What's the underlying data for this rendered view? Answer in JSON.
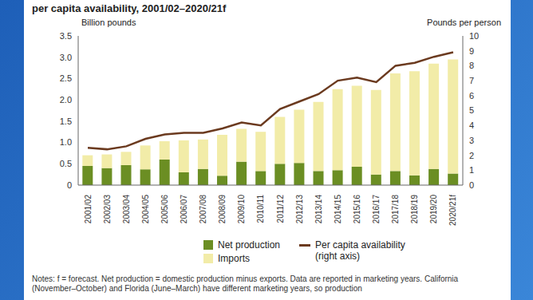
{
  "chart_data": {
    "type": "bar",
    "title": "per capita availability, 2001/02–2020/21f",
    "y_label": "Billion pounds",
    "y2_label": "Pounds per person",
    "stacked": true,
    "categories": [
      "2001/02",
      "2002/03",
      "2003/04",
      "2004/05",
      "2005/06",
      "2006/07",
      "2007/08",
      "2008/09",
      "2009/10",
      "2010/11",
      "2011/12",
      "2012/13",
      "2013/14",
      "2014/15",
      "2015/16",
      "2016/17",
      "2017/18",
      "2018/19",
      "2019/20",
      "2020/21f"
    ],
    "series": [
      {
        "name": "Net production",
        "type": "bar",
        "color": "#6b8e23",
        "values": [
          0.45,
          0.4,
          0.47,
          0.37,
          0.6,
          0.3,
          0.38,
          0.22,
          0.55,
          0.33,
          0.5,
          0.52,
          0.33,
          0.35,
          0.43,
          0.25,
          0.33,
          0.23,
          0.38,
          0.27
        ]
      },
      {
        "name": "Imports",
        "type": "bar",
        "color": "#f2eca8",
        "values": [
          0.25,
          0.32,
          0.31,
          0.56,
          0.43,
          0.75,
          0.69,
          0.96,
          0.77,
          0.92,
          1.1,
          1.25,
          1.62,
          1.9,
          1.9,
          1.98,
          2.29,
          2.44,
          2.47,
          2.68
        ]
      },
      {
        "name": "Per capita availability (right axis)",
        "type": "line",
        "axis": "y2",
        "color": "#6b3a1f",
        "values": [
          2.5,
          2.4,
          2.6,
          3.1,
          3.4,
          3.5,
          3.5,
          3.8,
          4.2,
          4.0,
          5.1,
          5.6,
          6.1,
          7.0,
          7.2,
          6.9,
          8.0,
          8.2,
          8.6,
          8.9
        ]
      }
    ],
    "ylim": [
      0,
      3.5
    ],
    "yticks": [
      0,
      0.5,
      {
        "value": 1,
        "label": "1.0"
      },
      1.5,
      {
        "value": 2,
        "label": "2.0"
      },
      2.5,
      {
        "value": 3,
        "label": "3.0"
      },
      3.5
    ],
    "y2lim": [
      0,
      10
    ],
    "y2ticks": [
      0,
      1,
      2,
      3,
      4,
      5,
      6,
      7,
      8,
      9,
      10
    ],
    "grid": false,
    "notes": "Notes: f = forecast. Net production = domestic production minus exports. Data are reported in marketing years. California (November–October) and Florida (June–March) have different marketing years, so production"
  }
}
